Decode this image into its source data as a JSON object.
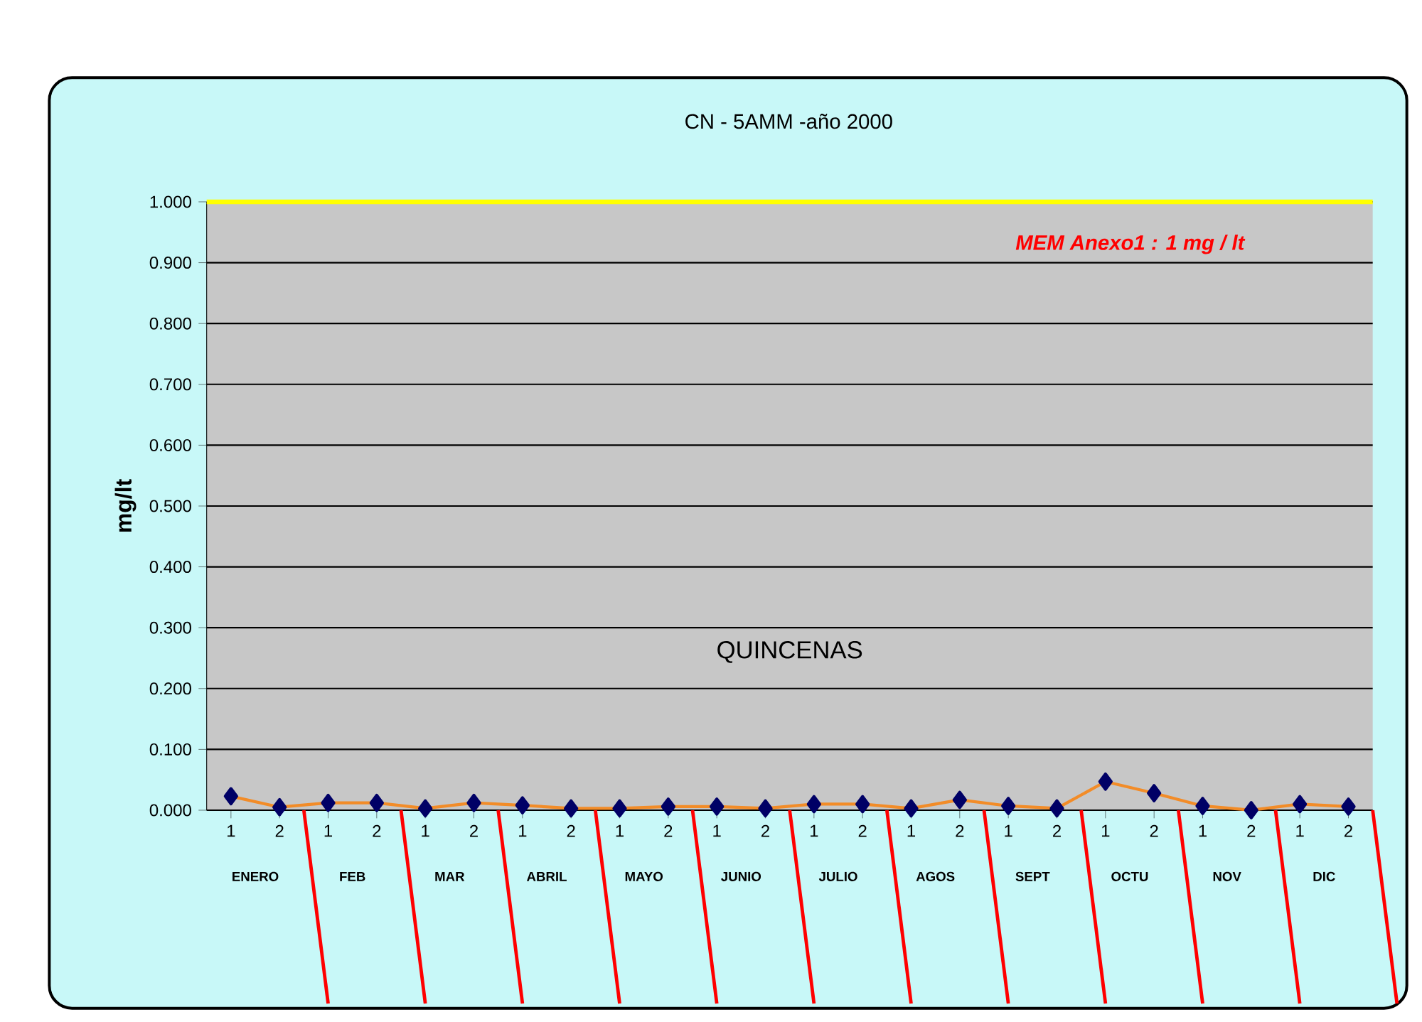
{
  "chart_data": {
    "type": "line",
    "title": "CN - 5AMM -año  2000",
    "xlabel": "QUINCENAS",
    "ylabel": "mg/lt",
    "categories": [
      "1",
      "2",
      "1",
      "2",
      "1",
      "2",
      "1",
      "2",
      "1",
      "2",
      "1",
      "2",
      "1",
      "2",
      "1",
      "2",
      "1",
      "2",
      "1",
      "2",
      "1",
      "2",
      "1",
      "2"
    ],
    "series": [
      {
        "color": "#f28c28",
        "values": [
          0.023,
          0.005,
          0.012,
          0.012,
          0.003,
          0.012,
          0.008,
          0.003,
          0.003,
          0.006,
          0.006,
          0.003,
          0.01,
          0.01,
          0.003,
          0.017,
          0.007,
          0.003,
          0.047,
          0.028,
          0.007,
          0.0,
          0.01,
          0.006
        ]
      }
    ],
    "marker": "diamond",
    "line_style": "solid",
    "grid": "y",
    "ylim": [
      0,
      1
    ],
    "yticks": [
      {
        "value": 0,
        "label": "0.000"
      },
      {
        "value": 0.1,
        "label": "0.100"
      },
      {
        "value": 0.2,
        "label": "0.200"
      },
      {
        "value": 0.3,
        "label": "0.300"
      },
      {
        "value": 0.4,
        "label": "0.400"
      },
      {
        "value": 0.5,
        "label": "0.500"
      },
      {
        "value": 0.6,
        "label": "0.600"
      },
      {
        "value": 0.7,
        "label": "0.700"
      },
      {
        "value": 0.8,
        "label": "0.800"
      },
      {
        "value": 0.9,
        "label": "0.900"
      },
      {
        "value": 1,
        "label": "1.000"
      }
    ],
    "ref_lines": [
      {
        "axis": "y",
        "value": 1,
        "label": "MEM Anexo1 : 1 mg / lt",
        "color": "#ffff00"
      }
    ],
    "annotations": [
      "ENERO",
      "FEB",
      "MAR",
      "ABRIL",
      "MAYO",
      "JUNIO",
      "JULIO",
      "AGOS",
      "SEPT",
      "OCTU",
      "NOV",
      "DIC"
    ]
  }
}
